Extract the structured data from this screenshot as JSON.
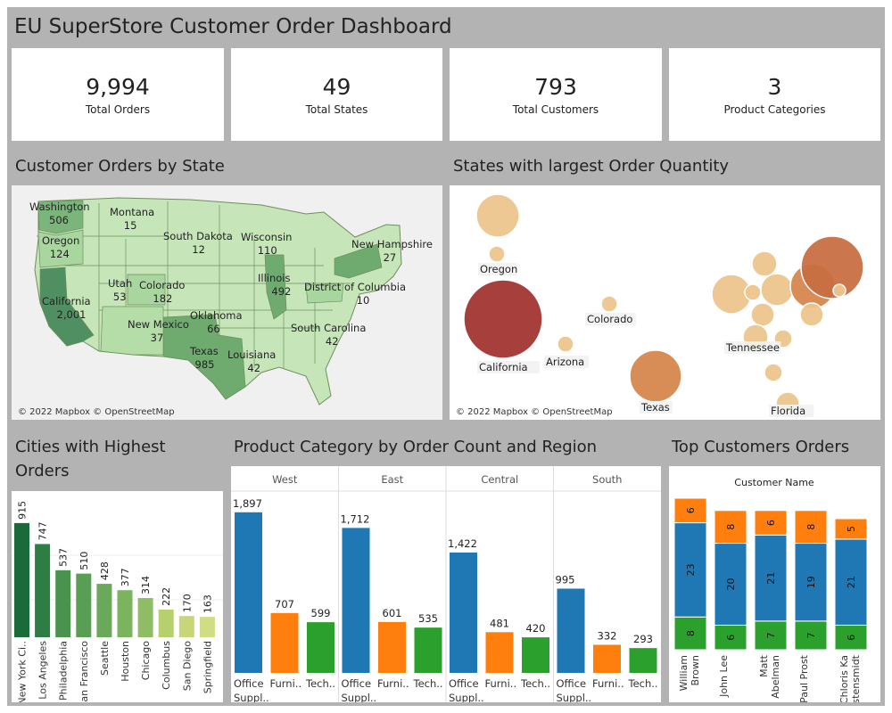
{
  "title": "EU SuperStore Customer Order Dashboard",
  "kpis": [
    {
      "value": "9,994",
      "label": "Total Orders"
    },
    {
      "value": "49",
      "label": "Total States"
    },
    {
      "value": "793",
      "label": "Total Customers"
    },
    {
      "value": "3",
      "label": "Product Categories"
    }
  ],
  "sections": {
    "map": "Customer Orders by State",
    "bubbles": "States with largest Order Quantity",
    "cities": "Cities with Highest Orders",
    "category": "Product Category by Order Count and Region",
    "customers": "Top Customers Orders"
  },
  "attribution": "© 2022 Mapbox © OpenStreetMap",
  "colors": {
    "map_low": "#c6e6b9",
    "map_high": "#4f8f61",
    "bubble_low": "#edc58d",
    "bubble_mid": "#d7874d",
    "bubble_high": "#a23532",
    "office": "#1f77b4",
    "furniture": "#ff7f0e",
    "technology": "#2ca02c"
  },
  "map_labels": [
    {
      "state": "Washington",
      "value": "506"
    },
    {
      "state": "Montana",
      "value": "15"
    },
    {
      "state": "Oregon",
      "value": "124"
    },
    {
      "state": "South Dakota",
      "value": "12"
    },
    {
      "state": "Wisconsin",
      "value": "110"
    },
    {
      "state": "New Hampshire",
      "value": "27"
    },
    {
      "state": "Utah",
      "value": "53"
    },
    {
      "state": "Colorado",
      "value": "182"
    },
    {
      "state": "Illinois",
      "value": "492"
    },
    {
      "state": "District of Columbia",
      "value": "10"
    },
    {
      "state": "California",
      "value": "2,001"
    },
    {
      "state": "Oklahoma",
      "value": "66"
    },
    {
      "state": "New Mexico",
      "value": "37"
    },
    {
      "state": "South Carolina",
      "value": "42"
    },
    {
      "state": "Texas",
      "value": "985"
    },
    {
      "state": "Louisiana",
      "value": "42"
    }
  ],
  "bubble_labels": [
    "Oregon",
    "Colorado",
    "California",
    "Arizona",
    "Texas",
    "Tennessee",
    "Florida"
  ],
  "chart_data": [
    {
      "type": "bar",
      "title": "Cities with Highest Orders",
      "categories": [
        "New York Ci..",
        "Los Angeles",
        "Philadelphia",
        "San Francisco",
        "Seattle",
        "Houston",
        "Chicago",
        "Columbus",
        "San Diego",
        "Springfield"
      ],
      "values": [
        915,
        747,
        537,
        510,
        428,
        377,
        314,
        222,
        170,
        163
      ],
      "ylim": [
        0,
        1000
      ]
    },
    {
      "type": "bar",
      "title": "Product Category by Order Count and Region",
      "regions": [
        "West",
        "East",
        "Central",
        "South"
      ],
      "categories": [
        "Office Suppl..",
        "Furni..",
        "Tech.."
      ],
      "series": [
        {
          "values": [
            1897,
            707,
            599
          ]
        },
        {
          "values": [
            1712,
            601,
            535
          ]
        },
        {
          "values": [
            1422,
            481,
            420
          ]
        },
        {
          "values": [
            995,
            332,
            293
          ]
        }
      ],
      "ylim": [
        0,
        2000
      ]
    },
    {
      "type": "bar",
      "title": "Top Customers Orders",
      "xlabel": "Customer Name",
      "categories": [
        "William Brown",
        "John Lee",
        "Matt Abelman",
        "Paul Prost",
        "Chloris Kastensmidt"
      ],
      "category_labels": [
        [
          "William",
          "Brown"
        ],
        [
          "John Lee"
        ],
        [
          "Matt",
          "Abelman"
        ],
        [
          "Paul Prost"
        ],
        [
          "Chloris Ka",
          "stensmidt"
        ]
      ],
      "series": [
        {
          "values": [
            8,
            6,
            7,
            7,
            6
          ]
        },
        {
          "values": [
            23,
            20,
            21,
            19,
            21
          ]
        },
        {
          "values": [
            6,
            8,
            6,
            8,
            5
          ]
        }
      ],
      "ylim": [
        0,
        37
      ]
    }
  ]
}
